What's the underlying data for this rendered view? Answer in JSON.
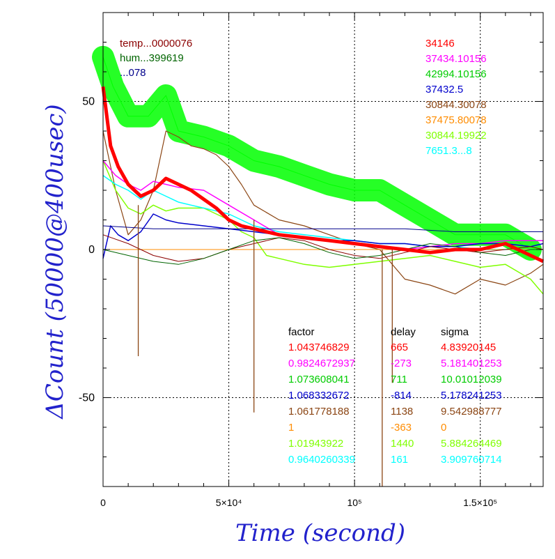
{
  "chart_data": {
    "type": "line",
    "xlabel": "Time (second)",
    "ylabel": "ΔCount (50000@400usec)",
    "xlim": [
      0,
      175000
    ],
    "ylim": [
      -80,
      80
    ],
    "grid": true,
    "x_ticks": [
      {
        "value": 0,
        "label": "0"
      },
      {
        "value": 50000,
        "label": "5×10⁴"
      },
      {
        "value": 100000,
        "label": "10⁵"
      },
      {
        "value": 150000,
        "label": "1.5×10⁵"
      }
    ],
    "y_ticks": [
      {
        "value": 50,
        "label": "50"
      },
      {
        "value": 0,
        "label": "0"
      },
      {
        "value": -50,
        "label": "-50"
      }
    ],
    "top_left_labels": [
      {
        "text": "temp...0000076",
        "color": "#8b0000"
      },
      {
        "text": "hum...399619",
        "color": "#006400"
      },
      {
        "text": "...078",
        "color": "#00008b"
      }
    ],
    "top_right_labels": [
      {
        "text": "34146",
        "color": "#ff0000"
      },
      {
        "text": "37434.10156",
        "color": "#ff00ff"
      },
      {
        "text": "42994.10156",
        "color": "#00cc00"
      },
      {
        "text": "37432.5",
        "color": "#0000cc"
      },
      {
        "text": "30844.30078",
        "color": "#8b4513"
      },
      {
        "text": "37475.80078",
        "color": "#ff8c00"
      },
      {
        "text": "30844.19922",
        "color": "#7fff00"
      },
      {
        "text": "7651.3...8",
        "color": "#00ffff"
      }
    ],
    "table": {
      "headers": [
        "factor",
        "delay",
        "sigma"
      ],
      "rows": [
        {
          "factor": "1.043746829",
          "delay": "665",
          "sigma": "4.83920145",
          "color": "#ff0000"
        },
        {
          "factor": "0.9824672937",
          "delay": "-273",
          "sigma": "5.181401253",
          "color": "#ff00ff"
        },
        {
          "factor": "1.073608041",
          "delay": "711",
          "sigma": "10.01012039",
          "color": "#00cc00"
        },
        {
          "factor": "1.068332672",
          "delay": "-814",
          "sigma": "5.178241253",
          "color": "#0000cc"
        },
        {
          "factor": "1.061778188",
          "delay": "1138",
          "sigma": "9.542988777",
          "color": "#8b4513"
        },
        {
          "factor": "1",
          "delay": "-363",
          "sigma": "0",
          "color": "#ff8c00"
        },
        {
          "factor": "1.01943922",
          "delay": "1440",
          "sigma": "5.884264469",
          "color": "#7fff00"
        },
        {
          "factor": "0.9640260339",
          "delay": "161",
          "sigma": "3.909760714",
          "color": "#00ffff"
        }
      ]
    },
    "series": [
      {
        "color": "#00ff00",
        "stroke": 1,
        "band": 32,
        "band_color": "#00ff00",
        "x": [
          0,
          4000,
          10000,
          18000,
          25000,
          30000,
          40000,
          50000,
          60000,
          70000,
          80000,
          90000,
          100000,
          110000,
          120000,
          130000,
          140000,
          150000,
          160000,
          170000
        ],
        "y": [
          65,
          55,
          45,
          45,
          52,
          40,
          38,
          35,
          30,
          28,
          25,
          22,
          20,
          20,
          15,
          10,
          5,
          5,
          5,
          0
        ]
      },
      {
        "color": "#8b4513",
        "stroke": 1.2,
        "x": [
          0,
          5000,
          10000,
          15000,
          20000,
          25000,
          30000,
          35000,
          40000,
          45000,
          50000,
          55000,
          60000,
          70000,
          80000,
          90000,
          100000,
          110000,
          115000,
          120000,
          130000,
          140000,
          150000,
          160000,
          170000,
          175000
        ],
        "y": [
          40,
          20,
          5,
          10,
          20,
          40,
          38,
          35,
          34,
          32,
          28,
          22,
          15,
          10,
          8,
          5,
          2,
          0,
          -5,
          -10,
          -12,
          -15,
          -10,
          -12,
          -8,
          -5
        ]
      },
      {
        "color": "#7fff00",
        "stroke": 1.5,
        "x": [
          0,
          5000,
          10000,
          15000,
          20000,
          25000,
          30000,
          40000,
          50000,
          55000,
          60000,
          65000,
          70000,
          80000,
          90000,
          100000,
          110000,
          120000,
          130000,
          140000,
          150000,
          160000,
          170000,
          175000
        ],
        "y": [
          30,
          20,
          14,
          12,
          15,
          13,
          14,
          14,
          10,
          6,
          4,
          -2,
          -3,
          -5,
          -6,
          -5,
          -4,
          -3,
          -2,
          -4,
          -6,
          -5,
          -10,
          -15
        ]
      },
      {
        "color": "#00ffff",
        "stroke": 1.5,
        "x": [
          0,
          5000,
          10000,
          15000,
          20000,
          25000,
          30000,
          35000,
          40000,
          45000,
          50000,
          55000,
          60000,
          70000,
          80000,
          90000,
          100000,
          110000,
          120000,
          130000,
          140000,
          150000,
          160000,
          170000
        ],
        "y": [
          25,
          22,
          20,
          17,
          20,
          18,
          16,
          15,
          14,
          13,
          12,
          10,
          8,
          6,
          5,
          4,
          3,
          2,
          2,
          1,
          1,
          0,
          0,
          0
        ]
      },
      {
        "color": "#ff00ff",
        "stroke": 1.5,
        "x": [
          0,
          5000,
          10000,
          15000,
          20000,
          25000,
          30000,
          40000,
          50000,
          60000,
          70000,
          80000,
          90000,
          100000,
          110000,
          120000,
          130000,
          140000,
          150000,
          160000,
          170000,
          175000
        ],
        "y": [
          30,
          25,
          22,
          20,
          23,
          22,
          21,
          20,
          15,
          10,
          5,
          4,
          3,
          2,
          1,
          0,
          1,
          2,
          2,
          3,
          3,
          3
        ]
      },
      {
        "color": "#0000cc",
        "stroke": 1.5,
        "x": [
          0,
          3000,
          6000,
          10000,
          15000,
          20000,
          25000,
          30000,
          40000,
          50000,
          60000,
          70000,
          80000,
          90000,
          100000,
          110000,
          120000,
          130000,
          140000,
          150000,
          160000,
          170000,
          175000
        ],
        "y": [
          -3,
          8,
          5,
          3,
          6,
          12,
          10,
          9,
          8,
          7,
          6,
          5,
          4,
          3,
          3,
          2,
          2,
          1,
          1,
          2,
          2,
          1,
          2
        ]
      },
      {
        "color": "#00008b",
        "stroke": 1,
        "x": [
          0,
          20000,
          40000,
          60000,
          80000,
          100000,
          120000,
          140000,
          160000,
          175000
        ],
        "y": [
          8,
          7,
          7,
          7,
          7,
          7,
          7,
          6,
          6,
          6
        ]
      },
      {
        "color": "#ff8c00",
        "stroke": 1,
        "x": [
          0,
          175000
        ],
        "y": [
          0,
          0
        ]
      },
      {
        "color": "#8b0000",
        "stroke": 1,
        "x": [
          0,
          10000,
          20000,
          30000,
          40000,
          50000,
          60000,
          70000,
          80000,
          90000,
          100000,
          110000,
          120000,
          130000,
          140000,
          150000,
          160000,
          170000,
          175000
        ],
        "y": [
          5,
          2,
          -2,
          -4,
          -3,
          0,
          2,
          4,
          3,
          0,
          -2,
          -3,
          -1,
          1,
          0,
          -1,
          0,
          1,
          0
        ]
      },
      {
        "color": "#006400",
        "stroke": 1,
        "x": [
          0,
          10000,
          20000,
          30000,
          40000,
          50000,
          60000,
          70000,
          80000,
          90000,
          100000,
          110000,
          120000,
          130000,
          140000,
          150000,
          160000,
          170000,
          175000
        ],
        "y": [
          0,
          -2,
          -4,
          -5,
          -3,
          0,
          3,
          4,
          2,
          -1,
          -3,
          -2,
          0,
          2,
          1,
          -1,
          -2,
          0,
          0
        ]
      },
      {
        "color": "#ff0000",
        "stroke": 5,
        "x": [
          0,
          3000,
          6000,
          10000,
          15000,
          20000,
          25000,
          30000,
          35000,
          40000,
          45000,
          50000,
          55000,
          60000,
          70000,
          80000,
          90000,
          100000,
          110000,
          120000,
          130000,
          140000,
          150000,
          160000,
          170000,
          175000
        ],
        "y": [
          55,
          35,
          28,
          22,
          18,
          20,
          24,
          22,
          20,
          17,
          14,
          10,
          8,
          7,
          5,
          4,
          3,
          2,
          1,
          0,
          -1,
          0,
          0,
          2,
          -2,
          -4
        ]
      }
    ],
    "spikes": [
      {
        "x": 14000,
        "y_from": 15,
        "y_to": -36,
        "color": "#8b4513"
      },
      {
        "x": 60000,
        "y_from": 10,
        "y_to": -55,
        "color": "#8b4513"
      },
      {
        "x": 111000,
        "y_from": 0,
        "y_to": -80,
        "color": "#8b4513"
      },
      {
        "x": 115000,
        "y_from": 0,
        "y_to": -45,
        "color": "#8b4513"
      }
    ]
  }
}
